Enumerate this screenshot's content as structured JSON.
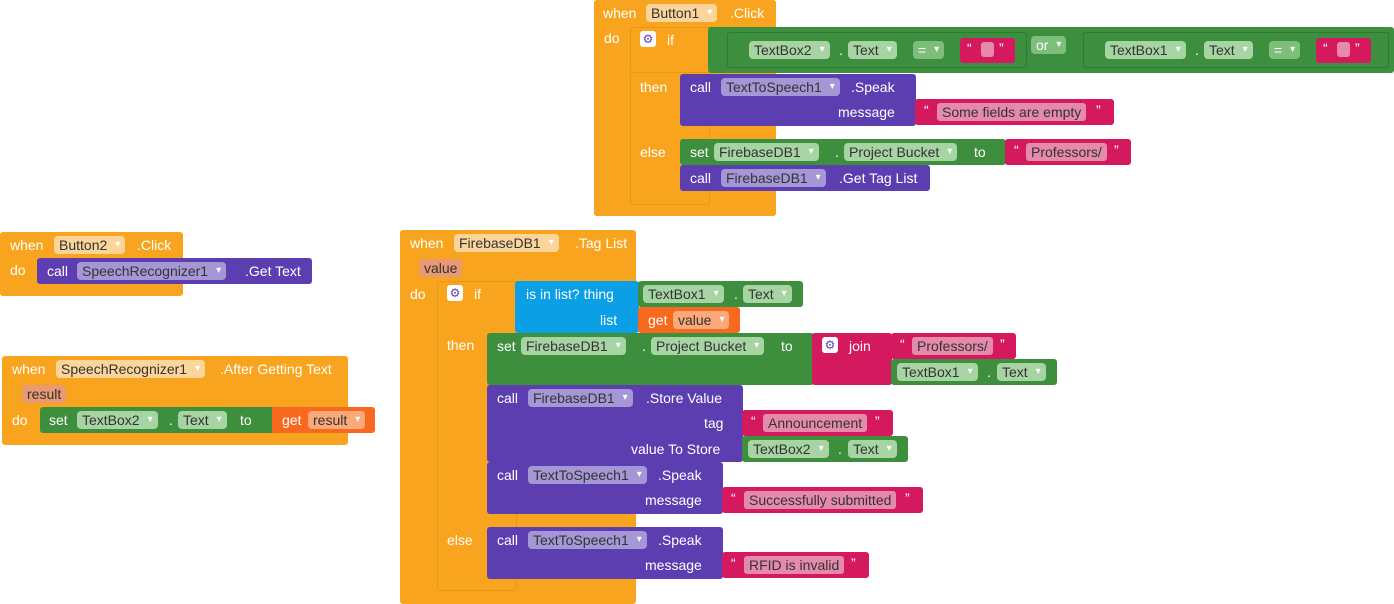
{
  "kw": {
    "when": "when",
    "do": "do",
    "if": "if",
    "then": "then",
    "else": "else",
    "call": "call",
    "set": "set",
    "to": "to",
    "get": "get",
    "or": "or",
    "eq": "=",
    "dot": ".",
    "message": "message",
    "join": "join",
    "is_in_list": "is in list? thing",
    "list": "list",
    "tag": "tag",
    "value_to_store": "value To Store",
    "open_quote": "“",
    "close_quote": "”"
  },
  "button1_click": {
    "component": "Button1",
    "event": ".Click",
    "cond1": {
      "component": "TextBox2",
      "prop": "Text",
      "op": "=",
      "value": ""
    },
    "cond2": {
      "component": "TextBox1",
      "prop": "Text",
      "op": "=",
      "value": ""
    },
    "then_call": {
      "component": "TextToSpeech1",
      "method": ".Speak",
      "message": "Some fields are empty"
    },
    "else_set": {
      "component": "FirebaseDB1",
      "prop": "Project Bucket",
      "value": "Professors/"
    },
    "else_call": {
      "component": "FirebaseDB1",
      "method": ".Get Tag List"
    }
  },
  "button2_click": {
    "component": "Button2",
    "event": ".Click",
    "call": {
      "component": "SpeechRecognizer1",
      "method": ".Get Text"
    }
  },
  "speech_after": {
    "component": "SpeechRecognizer1",
    "event": ".After Getting Text",
    "param": "result",
    "set": {
      "component": "TextBox2",
      "prop": "Text",
      "get": "result"
    }
  },
  "tag_list": {
    "component": "FirebaseDB1",
    "event": ".Tag List",
    "param": "value",
    "thing": {
      "component": "TextBox1",
      "prop": "Text"
    },
    "list_get": "value",
    "then_set": {
      "component": "FirebaseDB1",
      "prop": "Project Bucket",
      "join_a": "Professors/",
      "join_b_component": "TextBox1",
      "join_b_prop": "Text"
    },
    "store": {
      "component": "FirebaseDB1",
      "method": ".Store Value",
      "tag": "Announcement",
      "value_component": "TextBox2",
      "value_prop": "Text"
    },
    "speak1": {
      "component": "TextToSpeech1",
      "method": ".Speak",
      "message": "Successfully submitted"
    },
    "speak2": {
      "component": "TextToSpeech1",
      "method": ".Speak",
      "message": "RFID is invalid"
    }
  },
  "colors": {
    "event": "#f8a41e",
    "procedure": "#5d3eb0",
    "component_set": "#3d8f3d",
    "text": "#d4195f",
    "list": "#0b9fe6",
    "variable": "#f6691e"
  }
}
